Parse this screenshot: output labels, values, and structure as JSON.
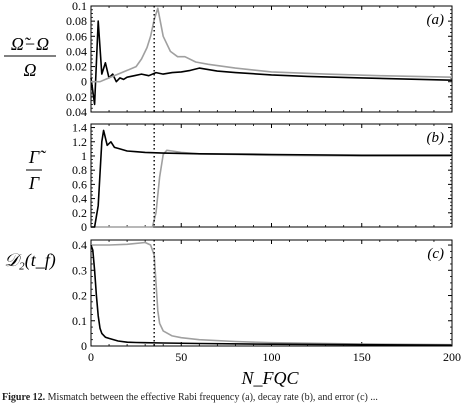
{
  "caption": {
    "label": "Figure 12.",
    "text": "Mismatch between the effective Rabi frequency (a), decay rate (b), and error (c) ..."
  },
  "chart_data": [
    {
      "id": "a",
      "type": "line",
      "panel_label": "(a)",
      "ylabel_num": "Ω̃−Ω",
      "ylabel_den": "Ω",
      "xlabel": "",
      "xlim": [
        0,
        200
      ],
      "ylim": [
        -0.04,
        0.1
      ],
      "yticks": [
        -0.04,
        -0.02,
        0,
        0.02,
        0.04,
        0.06,
        0.08,
        0.1
      ],
      "ytick_labels": [
        "0.04",
        "0.02",
        "0",
        "0.02",
        "0.04",
        "0.06",
        "0.08",
        "0.1"
      ],
      "xticks": [
        0,
        50,
        100,
        150,
        200
      ],
      "xtick_labels": [],
      "vline": 35,
      "series": [
        {
          "color": "#000000",
          "x": [
            0,
            2,
            4,
            6,
            8,
            10,
            12,
            14,
            16,
            18,
            20,
            24,
            28,
            32,
            36,
            40,
            45,
            50,
            55,
            60,
            70,
            80,
            100,
            120,
            150,
            200
          ],
          "y": [
            0.005,
            -0.03,
            0.08,
            0.01,
            0.025,
            0.005,
            0.01,
            0.0,
            0.005,
            0.003,
            0.006,
            0.008,
            0.01,
            0.008,
            0.012,
            0.01,
            0.012,
            0.013,
            0.015,
            0.018,
            0.014,
            0.012,
            0.009,
            0.007,
            0.005,
            0.002
          ]
        },
        {
          "color": "#a0a0a0",
          "x": [
            0,
            5,
            10,
            15,
            20,
            25,
            28,
            31,
            33,
            35,
            37,
            40,
            44,
            48,
            52,
            58,
            65,
            80,
            100,
            130,
            160,
            200
          ],
          "y": [
            0.0,
            0.0,
            0.005,
            0.01,
            0.015,
            0.02,
            0.03,
            0.045,
            0.06,
            0.082,
            0.097,
            0.06,
            0.04,
            0.033,
            0.033,
            0.026,
            0.023,
            0.018,
            0.013,
            0.01,
            0.008,
            0.006
          ]
        }
      ]
    },
    {
      "id": "b",
      "type": "line",
      "panel_label": "(b)",
      "ylabel_num": "Γ̃",
      "ylabel_den": "Γ",
      "xlabel": "",
      "xlim": [
        0,
        200
      ],
      "ylim": [
        0,
        1.45
      ],
      "yticks": [
        0,
        0.2,
        0.4,
        0.6,
        0.8,
        1,
        1.2,
        1.4
      ],
      "ytick_labels": [
        "0",
        "0.2",
        "0.4",
        "0.6",
        "0.8",
        "1",
        "1.2",
        "1.4"
      ],
      "xticks": [
        0,
        50,
        100,
        150,
        200
      ],
      "xtick_labels": [],
      "vline": 35,
      "series": [
        {
          "color": "#a0a0a0",
          "x": [
            0,
            10,
            20,
            30,
            34,
            36,
            38,
            40,
            42,
            45,
            50,
            60,
            80,
            100,
            150,
            200
          ],
          "y": [
            0,
            0,
            0,
            0,
            0,
            0.2,
            0.7,
            1.02,
            1.08,
            1.07,
            1.05,
            1.03,
            1.02,
            1.01,
            1.0,
            1.0
          ]
        },
        {
          "color": "#000000",
          "x": [
            0,
            2,
            4,
            6,
            7,
            9,
            11,
            13,
            16,
            20,
            25,
            30,
            40,
            60,
            100,
            150,
            200
          ],
          "y": [
            0,
            0,
            0.3,
            1.2,
            1.36,
            1.15,
            1.2,
            1.12,
            1.1,
            1.07,
            1.06,
            1.05,
            1.04,
            1.03,
            1.02,
            1.01,
            1.01
          ]
        }
      ]
    },
    {
      "id": "c",
      "type": "line",
      "panel_label": "(c)",
      "ylabel": "𝒟₂(t_f)",
      "xlabel": "N_FQC",
      "xlim": [
        0,
        200
      ],
      "ylim": [
        0,
        0.42
      ],
      "yticks": [
        0,
        0.1,
        0.2,
        0.3,
        0.4
      ],
      "ytick_labels": [
        "0",
        "0.1",
        "0.2",
        "0.3",
        "0.4"
      ],
      "xticks": [
        0,
        50,
        100,
        150,
        200
      ],
      "xtick_labels": [
        "0",
        "50",
        "100",
        "150",
        "200"
      ],
      "vline": 35,
      "series": [
        {
          "color": "#a0a0a0",
          "x": [
            0,
            10,
            20,
            30,
            33,
            35,
            36,
            37,
            38,
            40,
            45,
            50,
            60,
            80,
            100,
            150,
            200
          ],
          "y": [
            0.4,
            0.4,
            0.403,
            0.41,
            0.4,
            0.36,
            0.25,
            0.14,
            0.09,
            0.06,
            0.04,
            0.033,
            0.025,
            0.018,
            0.013,
            0.008,
            0.005
          ]
        },
        {
          "color": "#000000",
          "x": [
            0,
            1,
            2,
            3,
            4,
            5,
            6,
            8,
            10,
            15,
            20,
            25,
            30,
            40,
            60,
            100,
            150,
            200
          ],
          "y": [
            0.4,
            0.38,
            0.3,
            0.2,
            0.12,
            0.07,
            0.05,
            0.035,
            0.03,
            0.02,
            0.015,
            0.014,
            0.013,
            0.012,
            0.01,
            0.007,
            0.005,
            0.003
          ]
        }
      ]
    }
  ]
}
